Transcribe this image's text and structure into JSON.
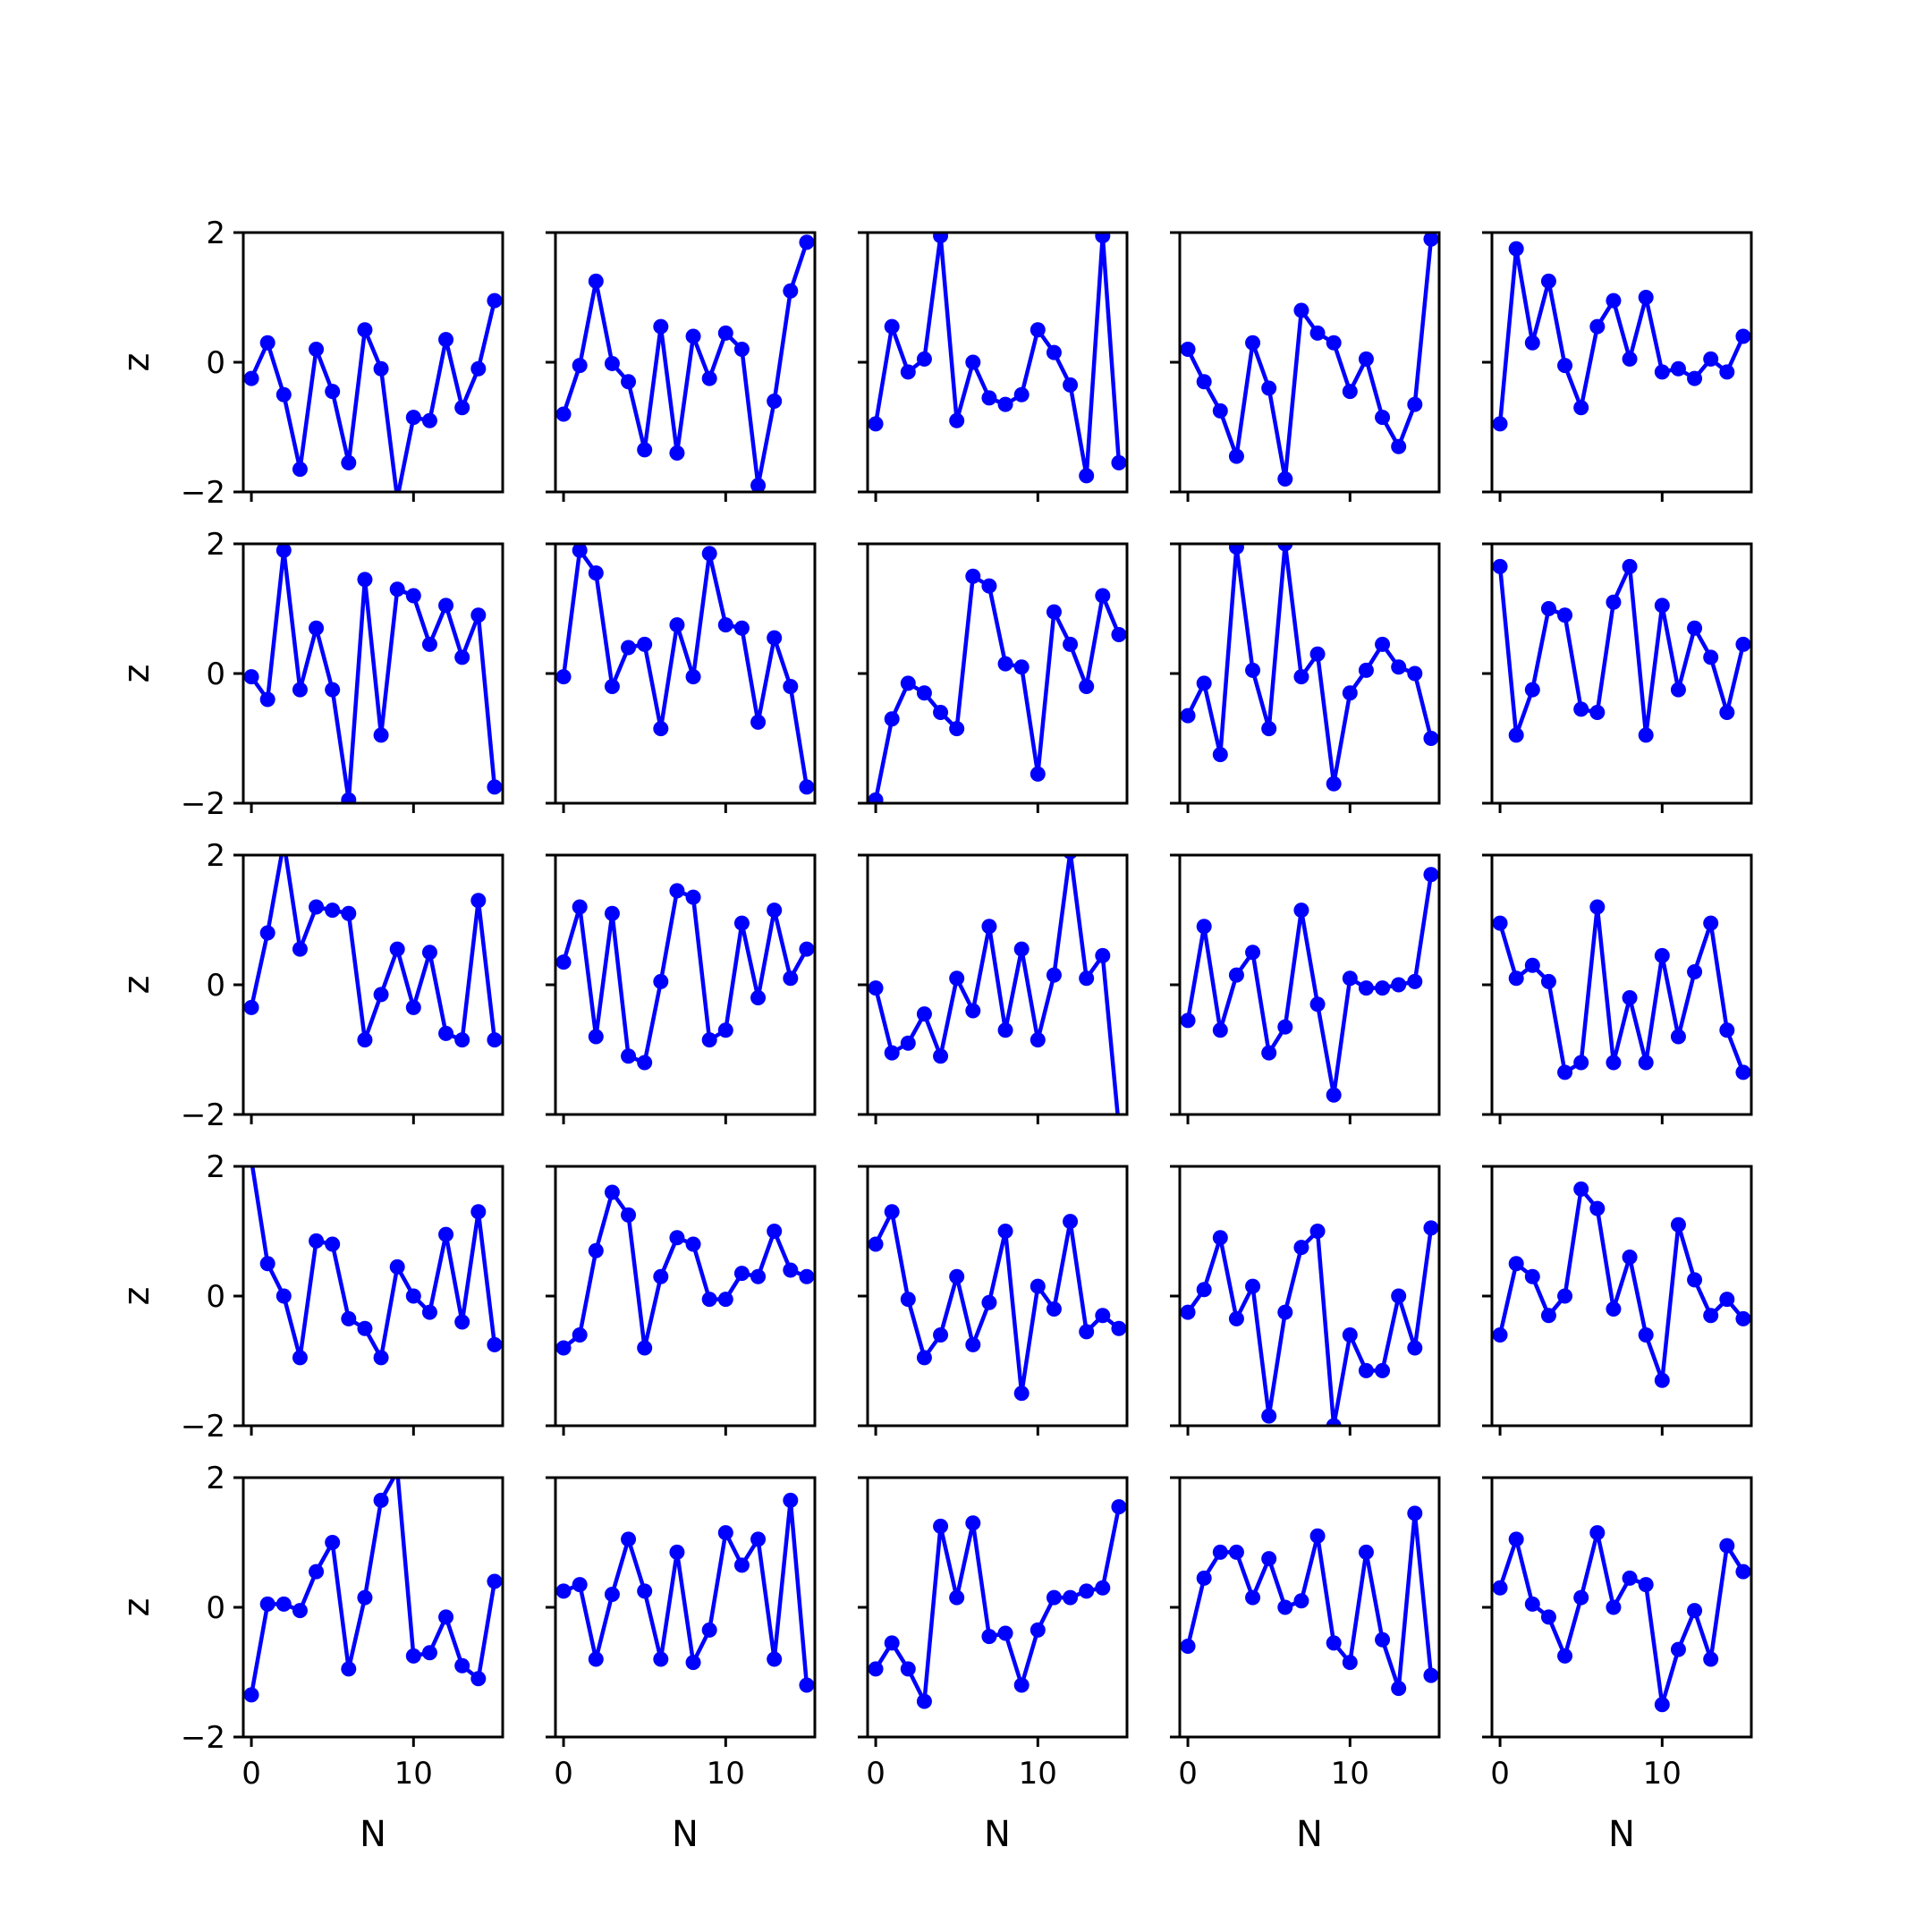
{
  "chart_data": {
    "type": "line",
    "layout": "5x5 grid of small multiples",
    "sharex": true,
    "sharey": true,
    "xlabel": "N",
    "ylabel": "z",
    "xlim": [
      -0.5,
      15.5
    ],
    "ylim": [
      -2,
      2
    ],
    "xticks": [
      0,
      10
    ],
    "xtick_labels": [
      "0",
      "10"
    ],
    "yticks": [
      -2,
      0,
      2
    ],
    "ytick_labels": [
      "−2",
      "0",
      "2"
    ],
    "line_color": "#0000ff",
    "marker": "circle",
    "grid": false,
    "panels": [
      {
        "row": 0,
        "col": 0,
        "x": [
          0,
          1,
          2,
          3,
          4,
          5,
          6,
          7,
          8,
          9,
          10,
          11,
          12,
          13,
          14,
          15
        ],
        "y": [
          -0.25,
          0.3,
          -0.5,
          -1.65,
          0.2,
          -0.45,
          -1.55,
          0.5,
          -0.1,
          -2.1,
          -0.85,
          -0.9,
          0.35,
          -0.7,
          -0.1,
          0.95
        ]
      },
      {
        "row": 0,
        "col": 1,
        "x": [
          0,
          1,
          2,
          3,
          4,
          5,
          6,
          7,
          8,
          9,
          10,
          11,
          12,
          13,
          14,
          15
        ],
        "y": [
          -0.8,
          -0.05,
          1.25,
          -0.02,
          -0.3,
          -1.35,
          0.55,
          -1.4,
          0.4,
          -0.25,
          0.45,
          0.2,
          -1.9,
          -0.6,
          1.1,
          1.85
        ]
      },
      {
        "row": 0,
        "col": 2,
        "x": [
          0,
          1,
          2,
          3,
          4,
          5,
          6,
          7,
          8,
          9,
          10,
          11,
          12,
          13,
          14,
          15
        ],
        "y": [
          -0.95,
          0.55,
          -0.15,
          0.05,
          1.95,
          -0.9,
          0.0,
          -0.55,
          -0.65,
          -0.5,
          0.5,
          0.15,
          -0.35,
          -1.75,
          1.95,
          -1.55
        ]
      },
      {
        "row": 0,
        "col": 3,
        "x": [
          0,
          1,
          2,
          3,
          4,
          5,
          6,
          7,
          8,
          9,
          10,
          11,
          12,
          13,
          14,
          15
        ],
        "y": [
          0.2,
          -0.3,
          -0.75,
          -1.45,
          0.3,
          -0.4,
          -1.8,
          0.8,
          0.45,
          0.3,
          -0.45,
          0.05,
          -0.85,
          -1.3,
          -0.65,
          1.9
        ]
      },
      {
        "row": 0,
        "col": 4,
        "x": [
          0,
          1,
          2,
          3,
          4,
          5,
          6,
          7,
          8,
          9,
          10,
          11,
          12,
          13,
          14,
          15
        ],
        "y": [
          -0.95,
          1.75,
          0.3,
          1.25,
          -0.05,
          -0.7,
          0.55,
          0.95,
          0.05,
          1.0,
          -0.15,
          -0.1,
          -0.25,
          0.05,
          -0.15,
          0.4
        ]
      },
      {
        "row": 1,
        "col": 0,
        "x": [
          0,
          1,
          2,
          3,
          4,
          5,
          6,
          7,
          8,
          9,
          10,
          11,
          12,
          13,
          14,
          15
        ],
        "y": [
          -0.05,
          -0.4,
          1.9,
          -0.25,
          0.7,
          -0.25,
          -1.95,
          1.45,
          -0.95,
          1.3,
          1.2,
          0.45,
          1.05,
          0.25,
          0.9,
          -1.75
        ]
      },
      {
        "row": 1,
        "col": 1,
        "x": [
          0,
          1,
          2,
          3,
          4,
          5,
          6,
          7,
          8,
          9,
          10,
          11,
          12,
          13,
          14,
          15
        ],
        "y": [
          -0.05,
          1.9,
          1.55,
          -0.2,
          0.4,
          0.45,
          -0.85,
          0.75,
          -0.05,
          1.85,
          0.75,
          0.7,
          -0.75,
          0.55,
          -0.2,
          -1.75
        ]
      },
      {
        "row": 1,
        "col": 2,
        "x": [
          0,
          1,
          2,
          3,
          4,
          5,
          6,
          7,
          8,
          9,
          10,
          11,
          12,
          13,
          14,
          15
        ],
        "y": [
          -1.95,
          -0.7,
          -0.15,
          -0.3,
          -0.6,
          -0.85,
          1.5,
          1.35,
          0.15,
          0.1,
          -1.55,
          0.95,
          0.45,
          -0.2,
          1.2,
          0.6
        ]
      },
      {
        "row": 1,
        "col": 3,
        "x": [
          0,
          1,
          2,
          3,
          4,
          5,
          6,
          7,
          8,
          9,
          10,
          11,
          12,
          13,
          14,
          15
        ],
        "y": [
          -0.65,
          -0.15,
          -1.25,
          1.95,
          0.05,
          -0.85,
          2.0,
          -0.05,
          0.3,
          -1.7,
          -0.3,
          0.05,
          0.45,
          0.1,
          0.0,
          -1.0
        ]
      },
      {
        "row": 1,
        "col": 4,
        "x": [
          0,
          1,
          2,
          3,
          4,
          5,
          6,
          7,
          8,
          9,
          10,
          11,
          12,
          13,
          14,
          15
        ],
        "y": [
          1.65,
          -0.95,
          -0.25,
          1.0,
          0.9,
          -0.55,
          -0.6,
          1.1,
          1.65,
          -0.95,
          1.05,
          -0.25,
          0.7,
          0.25,
          -0.6,
          0.45
        ]
      },
      {
        "row": 2,
        "col": 0,
        "x": [
          0,
          1,
          2,
          3,
          4,
          5,
          6,
          7,
          8,
          9,
          10,
          11,
          12,
          13,
          14,
          15
        ],
        "y": [
          -0.35,
          0.8,
          2.2,
          0.55,
          1.2,
          1.15,
          1.1,
          -0.85,
          -0.15,
          0.55,
          -0.35,
          0.5,
          -0.75,
          -0.85,
          1.3,
          -0.85
        ]
      },
      {
        "row": 2,
        "col": 1,
        "x": [
          0,
          1,
          2,
          3,
          4,
          5,
          6,
          7,
          8,
          9,
          10,
          11,
          12,
          13,
          14,
          15
        ],
        "y": [
          0.35,
          1.2,
          -0.8,
          1.1,
          -1.1,
          -1.2,
          0.05,
          1.45,
          1.35,
          -0.85,
          -0.7,
          0.95,
          -0.2,
          1.15,
          0.1,
          0.55
        ]
      },
      {
        "row": 2,
        "col": 2,
        "x": [
          0,
          1,
          2,
          3,
          4,
          5,
          6,
          7,
          8,
          9,
          10,
          11,
          12,
          13,
          14,
          15
        ],
        "y": [
          -0.05,
          -1.05,
          -0.9,
          -0.45,
          -1.1,
          0.1,
          -0.4,
          0.9,
          -0.7,
          0.55,
          -0.85,
          0.15,
          2.05,
          0.1,
          0.45,
          -2.2
        ]
      },
      {
        "row": 2,
        "col": 3,
        "x": [
          0,
          1,
          2,
          3,
          4,
          5,
          6,
          7,
          8,
          9,
          10,
          11,
          12,
          13,
          14,
          15
        ],
        "y": [
          -0.55,
          0.9,
          -0.7,
          0.15,
          0.5,
          -1.05,
          -0.65,
          1.15,
          -0.3,
          -1.7,
          0.1,
          -0.05,
          -0.05,
          0.0,
          0.05,
          1.7
        ]
      },
      {
        "row": 2,
        "col": 4,
        "x": [
          0,
          1,
          2,
          3,
          4,
          5,
          6,
          7,
          8,
          9,
          10,
          11,
          12,
          13,
          14,
          15
        ],
        "y": [
          0.95,
          0.1,
          0.3,
          0.05,
          -1.35,
          -1.2,
          1.2,
          -1.2,
          -0.2,
          -1.2,
          0.45,
          -0.8,
          0.2,
          0.95,
          -0.7,
          -1.35
        ]
      },
      {
        "row": 3,
        "col": 0,
        "x": [
          0,
          1,
          2,
          3,
          4,
          5,
          6,
          7,
          8,
          9,
          10,
          11,
          12,
          13,
          14,
          15
        ],
        "y": [
          2.1,
          0.5,
          0.0,
          -0.95,
          0.85,
          0.8,
          -0.35,
          -0.5,
          -0.95,
          0.45,
          0.0,
          -0.25,
          0.95,
          -0.4,
          1.3,
          -0.75
        ]
      },
      {
        "row": 3,
        "col": 1,
        "x": [
          0,
          1,
          2,
          3,
          4,
          5,
          6,
          7,
          8,
          9,
          10,
          11,
          12,
          13,
          14,
          15
        ],
        "y": [
          -0.8,
          -0.6,
          0.7,
          1.6,
          1.25,
          -0.8,
          0.3,
          0.9,
          0.8,
          -0.05,
          -0.05,
          0.35,
          0.3,
          1.0,
          0.4,
          0.3
        ]
      },
      {
        "row": 3,
        "col": 2,
        "x": [
          0,
          1,
          2,
          3,
          4,
          5,
          6,
          7,
          8,
          9,
          10,
          11,
          12,
          13,
          14,
          15
        ],
        "y": [
          0.8,
          1.3,
          -0.05,
          -0.95,
          -0.6,
          0.3,
          -0.75,
          -0.1,
          1.0,
          -1.5,
          0.15,
          -0.2,
          1.15,
          -0.55,
          -0.3,
          -0.5
        ]
      },
      {
        "row": 3,
        "col": 3,
        "x": [
          0,
          1,
          2,
          3,
          4,
          5,
          6,
          7,
          8,
          9,
          10,
          11,
          12,
          13,
          14,
          15
        ],
        "y": [
          -0.25,
          0.1,
          0.9,
          -0.35,
          0.15,
          -1.85,
          -0.25,
          0.75,
          1.0,
          -2.0,
          -0.6,
          -1.15,
          -1.15,
          0.0,
          -0.8,
          1.05
        ]
      },
      {
        "row": 3,
        "col": 4,
        "x": [
          0,
          1,
          2,
          3,
          4,
          5,
          6,
          7,
          8,
          9,
          10,
          11,
          12,
          13,
          14,
          15
        ],
        "y": [
          -0.6,
          0.5,
          0.3,
          -0.3,
          0.0,
          1.65,
          1.35,
          -0.2,
          0.6,
          -0.6,
          -1.3,
          1.1,
          0.25,
          -0.3,
          -0.05,
          -0.35
        ]
      },
      {
        "row": 4,
        "col": 0,
        "x": [
          0,
          1,
          2,
          3,
          4,
          5,
          6,
          7,
          8,
          9,
          10,
          11,
          12,
          13,
          14,
          15
        ],
        "y": [
          -1.35,
          0.05,
          0.05,
          -0.05,
          0.55,
          1.0,
          -0.95,
          0.15,
          1.65,
          2.1,
          -0.75,
          -0.7,
          -0.15,
          -0.9,
          -1.1,
          0.4
        ]
      },
      {
        "row": 4,
        "col": 1,
        "x": [
          0,
          1,
          2,
          3,
          4,
          5,
          6,
          7,
          8,
          9,
          10,
          11,
          12,
          13,
          14,
          15
        ],
        "y": [
          0.25,
          0.35,
          -0.8,
          0.2,
          1.05,
          0.25,
          -0.8,
          0.85,
          -0.85,
          -0.35,
          1.15,
          0.65,
          1.05,
          -0.8,
          1.65,
          -1.2
        ]
      },
      {
        "row": 4,
        "col": 2,
        "x": [
          0,
          1,
          2,
          3,
          4,
          5,
          6,
          7,
          8,
          9,
          10,
          11,
          12,
          13,
          14,
          15
        ],
        "y": [
          -0.95,
          -0.55,
          -0.95,
          -1.45,
          1.25,
          0.15,
          1.3,
          -0.45,
          -0.4,
          -1.2,
          -0.35,
          0.15,
          0.15,
          0.25,
          0.3,
          1.55
        ]
      },
      {
        "row": 4,
        "col": 3,
        "x": [
          0,
          1,
          2,
          3,
          4,
          5,
          6,
          7,
          8,
          9,
          10,
          11,
          12,
          13,
          14,
          15
        ],
        "y": [
          -0.6,
          0.45,
          0.85,
          0.85,
          0.15,
          0.75,
          0.0,
          0.1,
          1.1,
          -0.55,
          -0.85,
          0.85,
          -0.5,
          -1.25,
          1.45,
          -1.05
        ]
      },
      {
        "row": 4,
        "col": 4,
        "x": [
          0,
          1,
          2,
          3,
          4,
          5,
          6,
          7,
          8,
          9,
          10,
          11,
          12,
          13,
          14,
          15
        ],
        "y": [
          0.3,
          1.05,
          0.05,
          -0.15,
          -0.75,
          0.15,
          1.15,
          0.0,
          0.45,
          0.35,
          -1.5,
          -0.65,
          -0.05,
          -0.8,
          0.95,
          0.55
        ]
      }
    ]
  }
}
